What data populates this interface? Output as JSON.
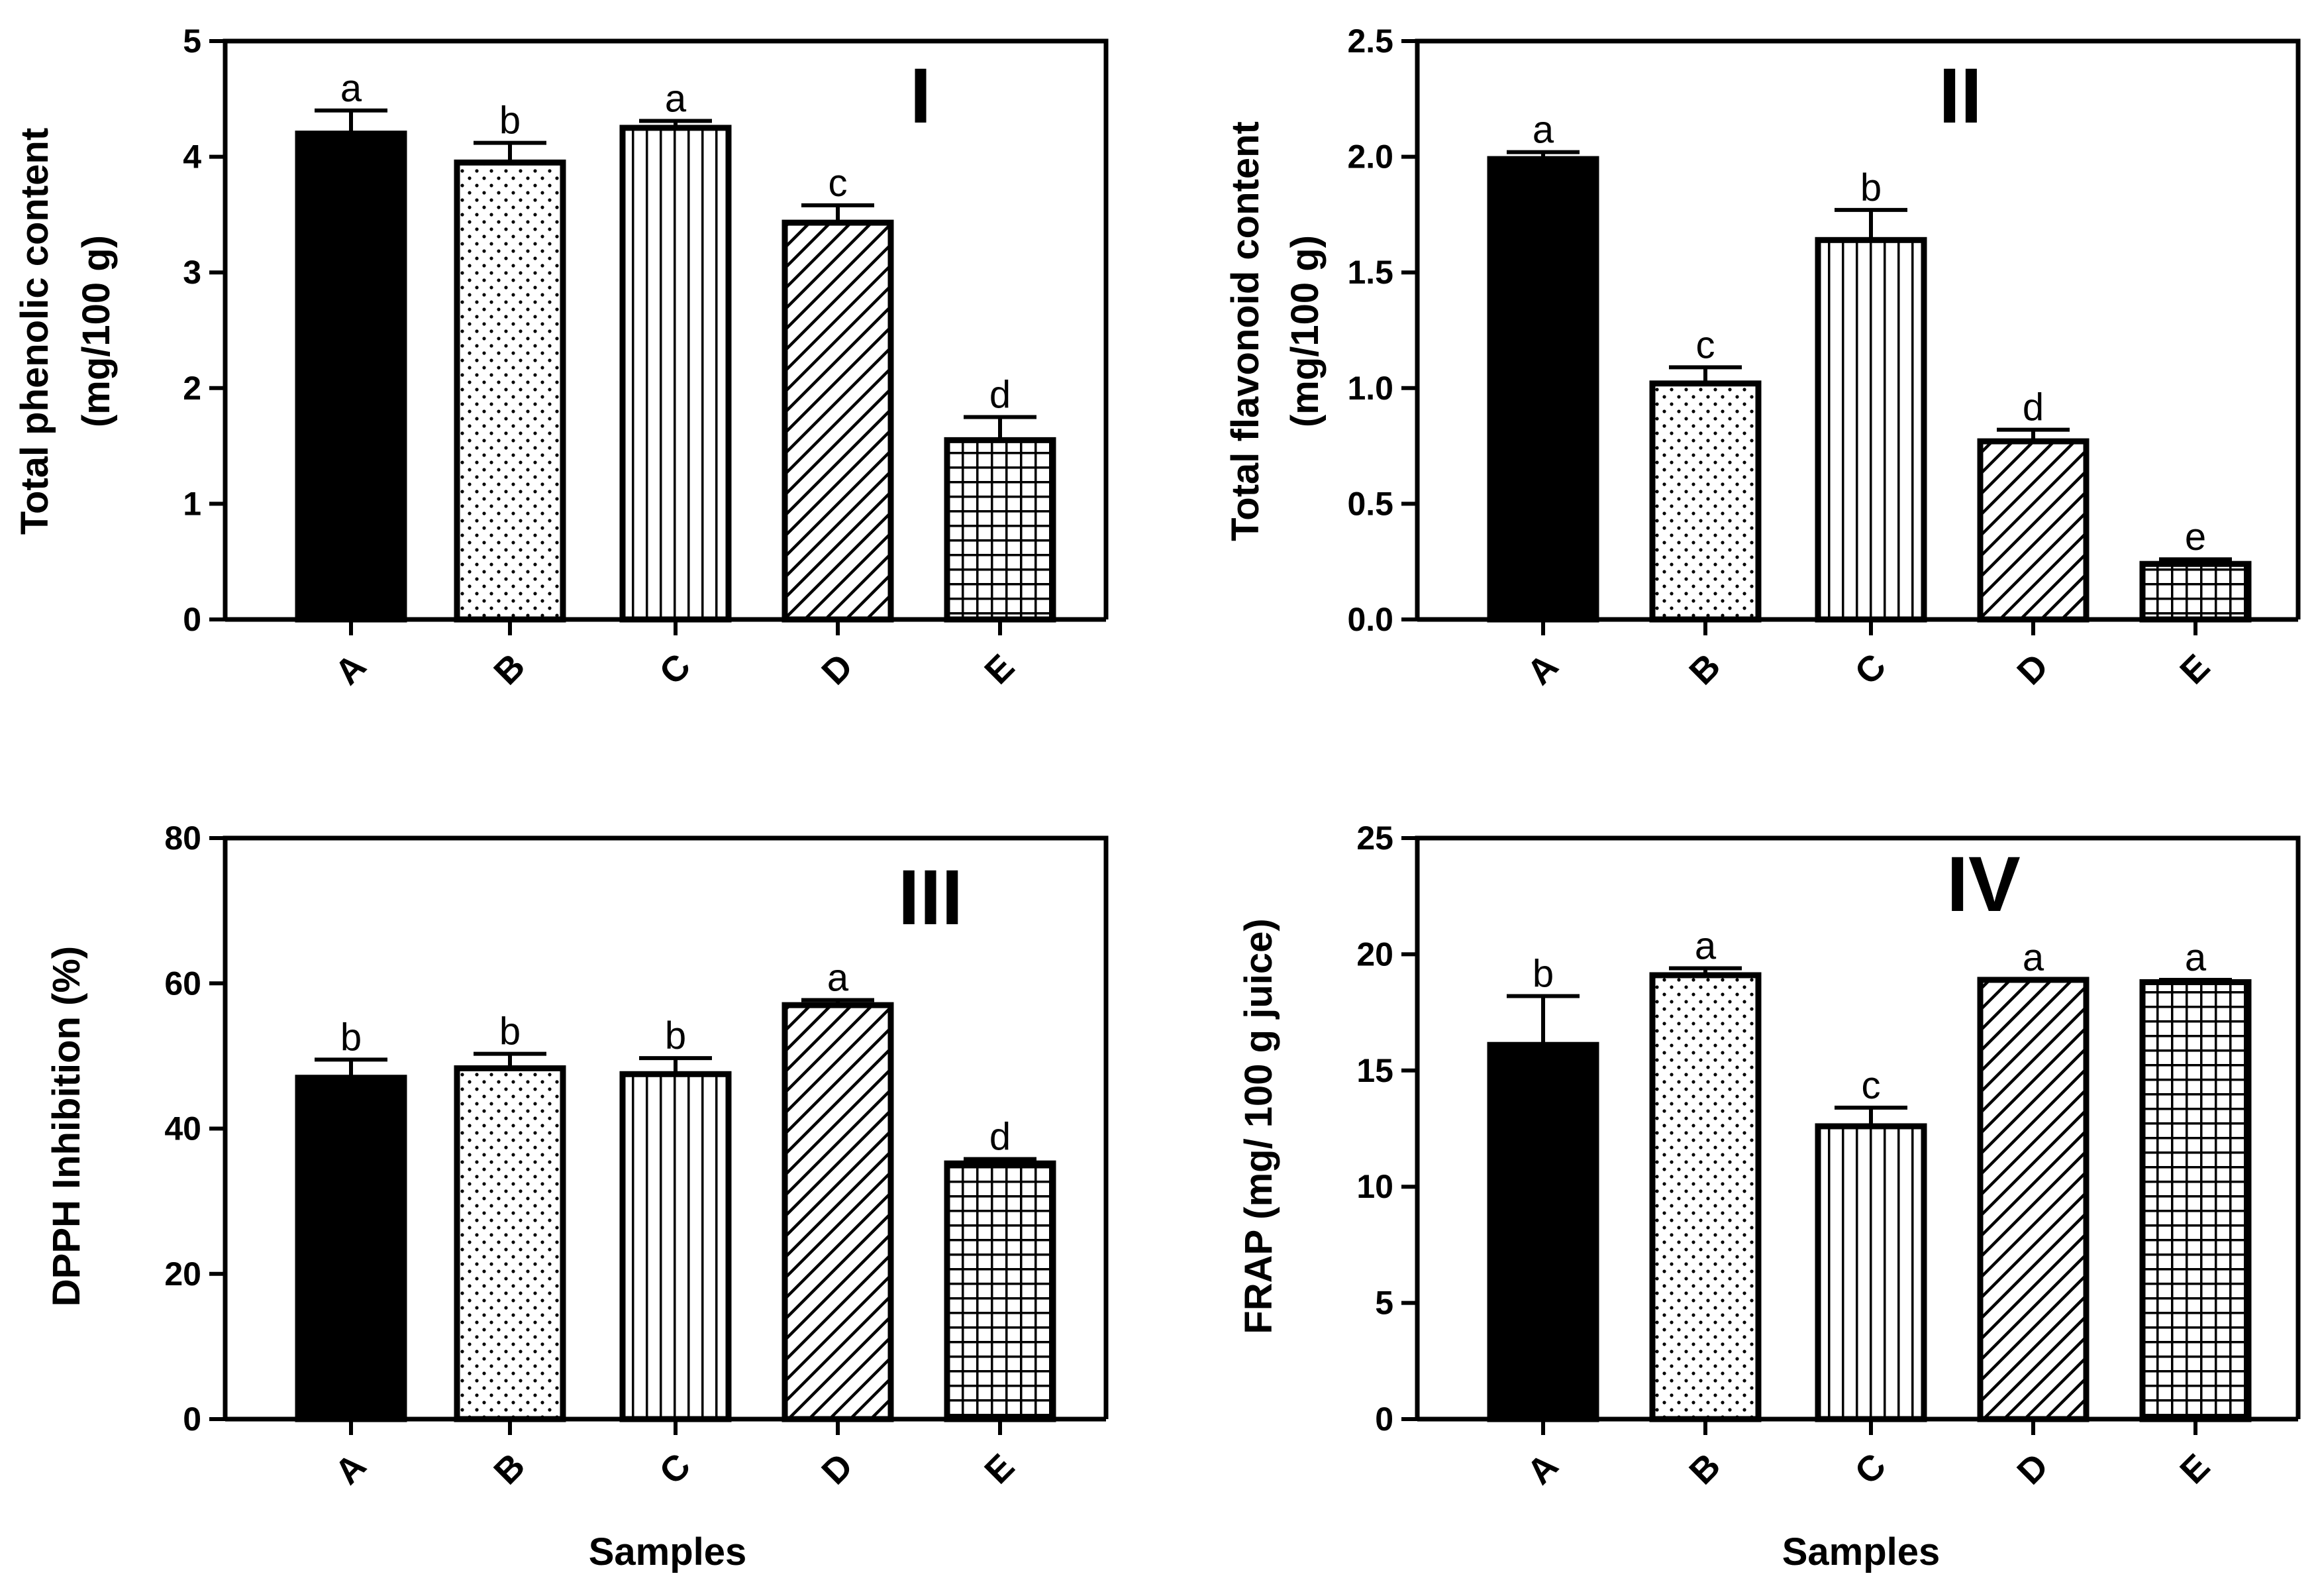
{
  "chart_data": [
    {
      "type": "bar",
      "panel_label": "I",
      "title": "",
      "xlabel": "",
      "ylabel": [
        "Total phenolic content",
        "(mg/100 g)"
      ],
      "ylim": [
        0,
        5
      ],
      "yticks": [
        0,
        1,
        2,
        3,
        4,
        5
      ],
      "ytick_labels": [
        "0",
        "1",
        "2",
        "3",
        "4",
        "5"
      ],
      "categories": [
        "A",
        "B",
        "C",
        "D",
        "E"
      ],
      "values": [
        4.2,
        3.95,
        4.25,
        3.43,
        1.55
      ],
      "errors": [
        0.2,
        0.17,
        0.06,
        0.15,
        0.2
      ],
      "significance": [
        "a",
        "b",
        "a",
        "c",
        "d"
      ],
      "patterns": [
        "solid",
        "dots",
        "vlines",
        "diag",
        "grid"
      ]
    },
    {
      "type": "bar",
      "panel_label": "II",
      "title": "",
      "xlabel": "",
      "ylabel": [
        "Total flavonoid content",
        "(mg/100 g)"
      ],
      "ylim": [
        0,
        2.5
      ],
      "yticks": [
        0,
        0.5,
        1.0,
        1.5,
        2.0,
        2.5
      ],
      "ytick_labels": [
        "0.0",
        "0.5",
        "1.0",
        "1.5",
        "2.0",
        "2.5"
      ],
      "categories": [
        "A",
        "B",
        "C",
        "D",
        "E"
      ],
      "values": [
        1.99,
        1.02,
        1.64,
        0.77,
        0.24
      ],
      "errors": [
        0.03,
        0.07,
        0.13,
        0.05,
        0.02
      ],
      "significance": [
        "a",
        "c",
        "b",
        "d",
        "e"
      ],
      "patterns": [
        "solid",
        "dots",
        "vlines",
        "diag",
        "grid"
      ]
    },
    {
      "type": "bar",
      "panel_label": "III",
      "title": "",
      "xlabel": "Samples",
      "ylabel": [
        "DPPH  Inhibition (%)"
      ],
      "ylim": [
        0,
        80
      ],
      "yticks": [
        0,
        20,
        40,
        60,
        80
      ],
      "ytick_labels": [
        "0",
        "20",
        "40",
        "60",
        "80"
      ],
      "categories": [
        "A",
        "B",
        "C",
        "D",
        "E"
      ],
      "values": [
        47,
        48.3,
        47.5,
        57,
        35.2
      ],
      "errors": [
        2.5,
        2.0,
        2.2,
        0.7,
        0.6
      ],
      "significance": [
        "b",
        "b",
        "b",
        "a",
        "d"
      ],
      "patterns": [
        "solid",
        "dots",
        "vlines",
        "diag",
        "grid"
      ]
    },
    {
      "type": "bar",
      "panel_label": "IV",
      "title": "",
      "xlabel": "Samples",
      "ylabel": [
        "FRAP (mg/ 100 g juice)"
      ],
      "ylim": [
        0,
        25
      ],
      "yticks": [
        0,
        5,
        10,
        15,
        20,
        25
      ],
      "ytick_labels": [
        "0",
        "5",
        "10",
        "15",
        "20",
        "25"
      ],
      "categories": [
        "A",
        "B",
        "C",
        "D",
        "E"
      ],
      "values": [
        16.1,
        19.1,
        12.6,
        18.9,
        18.8
      ],
      "errors": [
        2.1,
        0.3,
        0.8,
        0.0,
        0.1
      ],
      "significance": [
        "b",
        "a",
        "c",
        "a",
        "a"
      ],
      "patterns": [
        "solid",
        "dots",
        "vlines",
        "diag",
        "grid"
      ]
    }
  ]
}
